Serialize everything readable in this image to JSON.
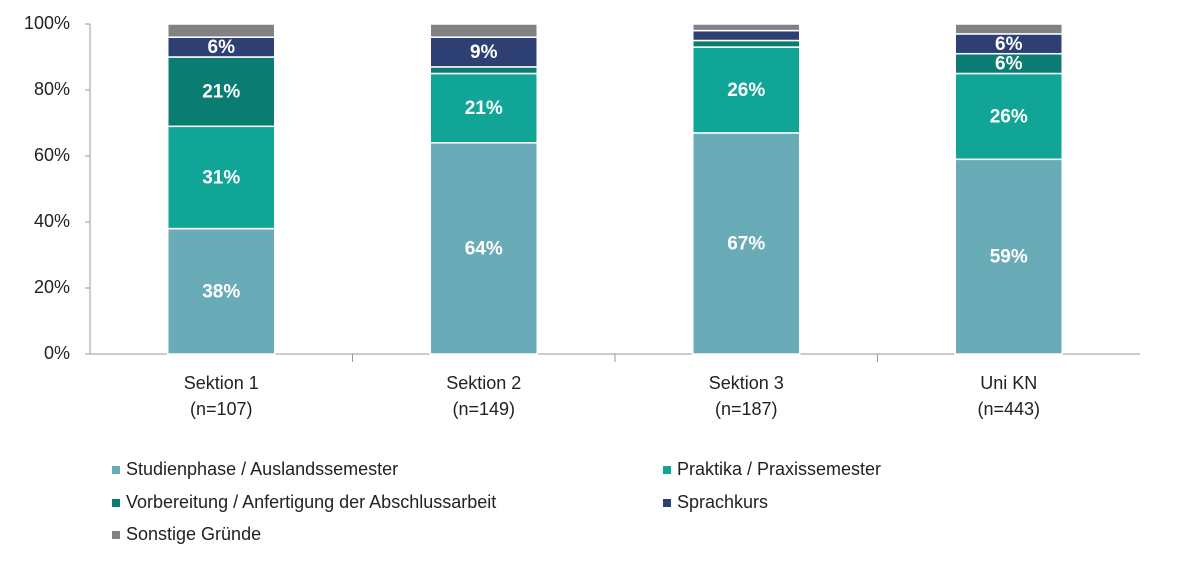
{
  "chart_data": {
    "type": "stacked_bar",
    "categories": [
      "Sektion 1",
      "Sektion 2",
      "Sektion 3",
      "Uni KN"
    ],
    "category_sublabels": [
      "(n=107)",
      "(n=149)",
      "(n=187)",
      "(n=443)"
    ],
    "series": [
      {
        "name": "Studienphase / Auslandssemester",
        "color": "#6aabb8",
        "values": [
          38,
          64,
          67,
          59
        ],
        "value_labels": [
          "38%",
          "64%",
          "67%",
          "59%"
        ]
      },
      {
        "name": "Praktika / Praxissemester",
        "color": "#10a596",
        "values": [
          31,
          21,
          26,
          26
        ],
        "value_labels": [
          "31%",
          "21%",
          "26%",
          "26%"
        ]
      },
      {
        "name": "Vorbereitung / Anfertigung der Abschlussarbeit",
        "color": "#0b7c72",
        "values": [
          21,
          2,
          2,
          6
        ],
        "value_labels": [
          "21%",
          null,
          null,
          "6%"
        ]
      },
      {
        "name": "Sprachkurs",
        "color": "#2e4073",
        "values": [
          6,
          9,
          3,
          6
        ],
        "value_labels": [
          "6%",
          "9%",
          null,
          "6%"
        ]
      },
      {
        "name": "Sonstige Gründe",
        "color": "#808285",
        "values": [
          4,
          4,
          2,
          3
        ],
        "value_labels": [
          null,
          null,
          null,
          null
        ]
      }
    ],
    "ylim": [
      0,
      100
    ],
    "yticks": [
      {
        "value": 0,
        "label": "0%"
      },
      {
        "value": 20,
        "label": "20%"
      },
      {
        "value": 40,
        "label": "40%"
      },
      {
        "value": 60,
        "label": "60%"
      },
      {
        "value": 80,
        "label": "80%"
      },
      {
        "value": 100,
        "label": "100%"
      }
    ],
    "grid": false
  }
}
